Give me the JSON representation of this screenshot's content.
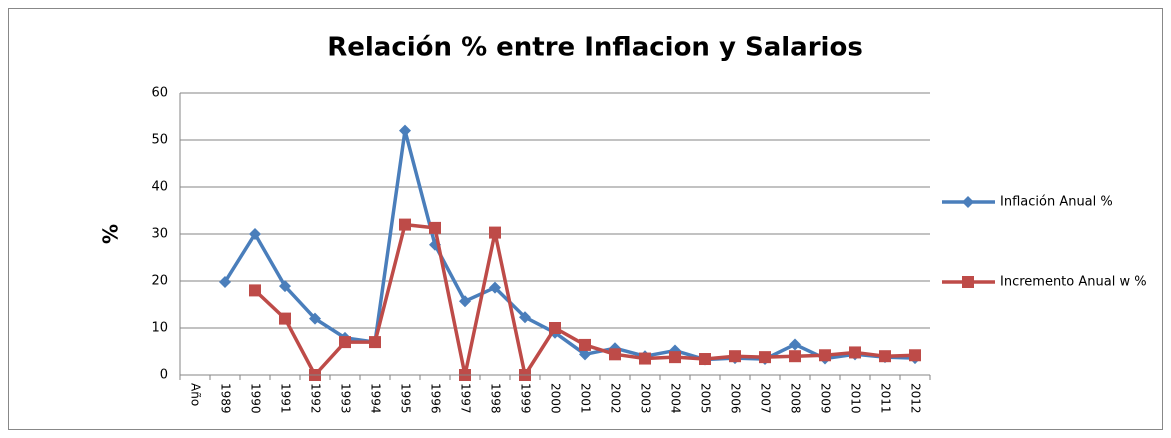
{
  "chart_data": {
    "type": "line",
    "title": "Relación % entre Inflacion y Salarios",
    "y_label": "%",
    "categories": [
      "Año",
      "1989",
      "1990",
      "1991",
      "1992",
      "1993",
      "1994",
      "1995",
      "1996",
      "1997",
      "1998",
      "1999",
      "2000",
      "2001",
      "2002",
      "2003",
      "2004",
      "2005",
      "2006",
      "2007",
      "2008",
      "2009",
      "2010",
      "2011",
      "2012"
    ],
    "series": [
      {
        "name": "Inflación Anual %",
        "color": "#4a7ebb",
        "marker": "diamond",
        "values": [
          null,
          19.8,
          30,
          18.9,
          12,
          7.9,
          7,
          52,
          27.7,
          15.7,
          18.6,
          12.3,
          9,
          4.4,
          5.7,
          4,
          5.2,
          3.3,
          3.6,
          3.4,
          6.5,
          3.5,
          4.4,
          3.8,
          3.6
        ]
      },
      {
        "name": "Incremento Anual w %",
        "color": "#be4b48",
        "marker": "square",
        "values": [
          null,
          null,
          18,
          12,
          0,
          7,
          7,
          32,
          31.3,
          0,
          30.3,
          0,
          10,
          6.4,
          4.4,
          3.5,
          3.8,
          3.4,
          4,
          3.8,
          4,
          4.2,
          4.8,
          4,
          4.2
        ]
      }
    ],
    "ylim": [
      0,
      60
    ],
    "yticks": [
      0,
      10,
      20,
      30,
      40,
      50,
      60
    ],
    "grid": true,
    "legend": "right"
  }
}
